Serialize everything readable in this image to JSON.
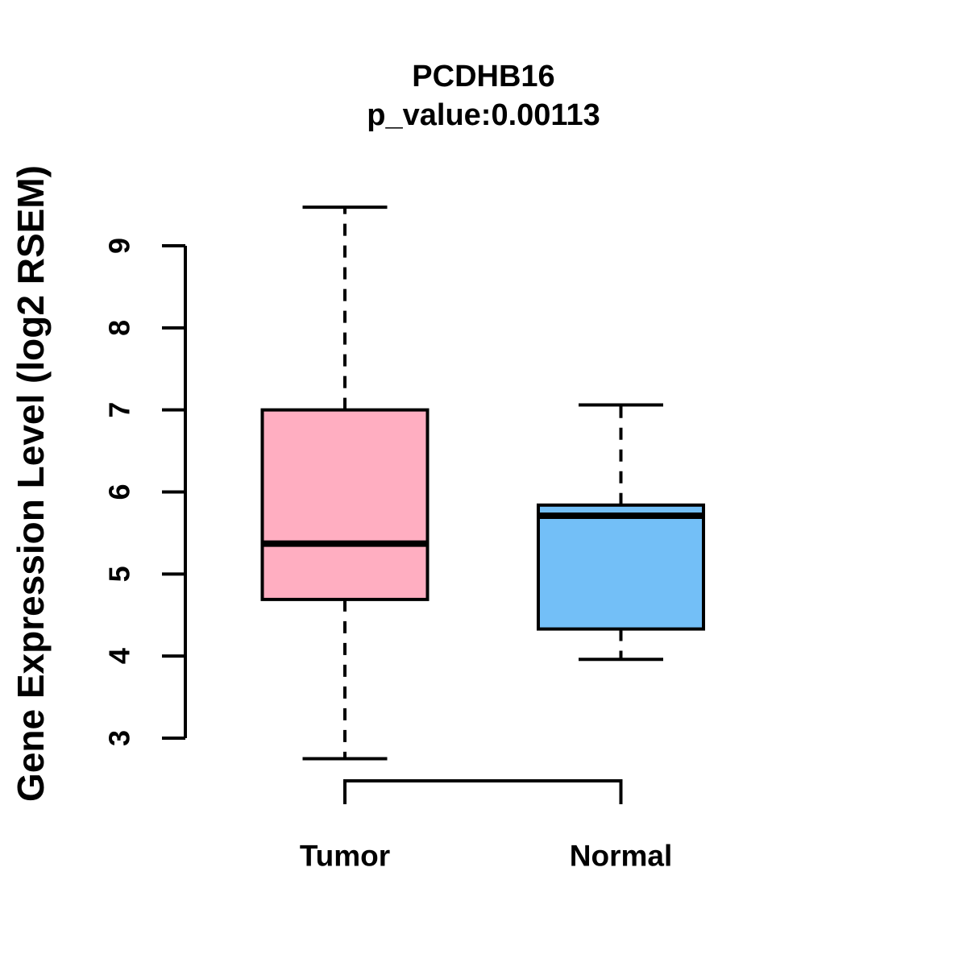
{
  "title": "PCDHB16",
  "subtitle": "p_value:0.00113",
  "gene": "PCDHB16",
  "p_value": "0.00113",
  "chart_data": {
    "type": "boxplot",
    "title": "PCDHB16",
    "subtitle": "p_value:0.00113",
    "ylabel": "Gene Expression Level (log2 RSEM)",
    "xlabel": "",
    "yticks": [
      3,
      4,
      5,
      6,
      7,
      8,
      9
    ],
    "axis_range": [
      3,
      9
    ],
    "grid": false,
    "legend": "none",
    "categories": [
      "Tumor",
      "Normal"
    ],
    "series": [
      {
        "name": "Tumor",
        "color": "#FFAEC1",
        "min": 2.75,
        "q1": 4.69,
        "median": 5.37,
        "q3": 7.0,
        "max": 9.47
      },
      {
        "name": "Normal",
        "color": "#73BFF7",
        "min": 3.96,
        "q1": 4.33,
        "median": 5.71,
        "q3": 5.84,
        "max": 7.06
      }
    ]
  },
  "colors": {
    "stroke": "#000000",
    "background": "#FFFFFF",
    "tumor_fill": "#FFAEC1",
    "normal_fill": "#73BFF7"
  }
}
